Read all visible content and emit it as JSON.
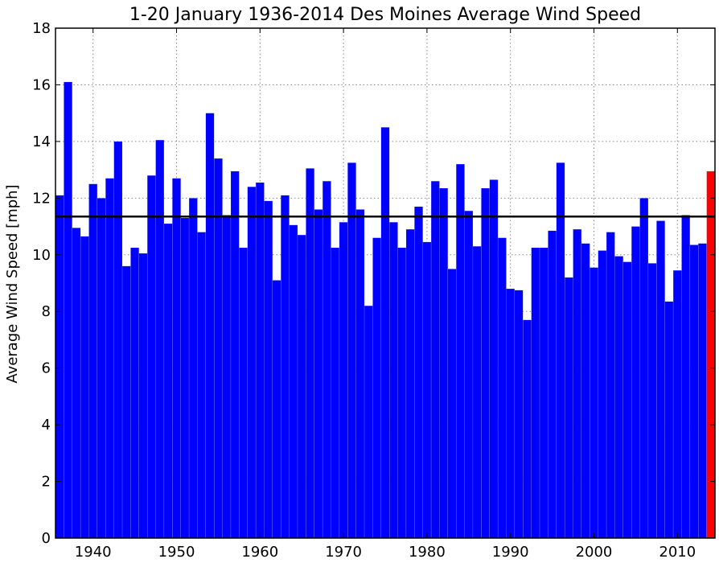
{
  "chart_data": {
    "type": "bar",
    "title": "1-20 January 1936-2014 Des Moines Average Wind Speed",
    "xlabel": "",
    "ylabel": "Average Wind Speed [mph]",
    "ylim": [
      0,
      18
    ],
    "xlim": [
      1935.5,
      2014.5
    ],
    "yticks": [
      0,
      2,
      4,
      6,
      8,
      10,
      12,
      14,
      16,
      18
    ],
    "xticks": [
      1940,
      1950,
      1960,
      1970,
      1980,
      1990,
      2000,
      2010
    ],
    "grid": true,
    "x": [
      1936,
      1937,
      1938,
      1939,
      1940,
      1941,
      1942,
      1943,
      1944,
      1945,
      1946,
      1947,
      1948,
      1949,
      1950,
      1951,
      1952,
      1953,
      1954,
      1955,
      1956,
      1957,
      1958,
      1959,
      1960,
      1961,
      1962,
      1963,
      1964,
      1965,
      1966,
      1967,
      1968,
      1969,
      1970,
      1971,
      1972,
      1973,
      1974,
      1975,
      1976,
      1977,
      1978,
      1979,
      1980,
      1981,
      1982,
      1983,
      1984,
      1985,
      1986,
      1987,
      1988,
      1989,
      1990,
      1991,
      1992,
      1993,
      1994,
      1995,
      1996,
      1997,
      1998,
      1999,
      2000,
      2001,
      2002,
      2003,
      2004,
      2005,
      2006,
      2007,
      2008,
      2009,
      2010,
      2011,
      2012,
      2013,
      2014
    ],
    "values": [
      12.1,
      16.1,
      10.95,
      10.65,
      12.5,
      12.0,
      12.7,
      14.0,
      9.6,
      10.25,
      10.05,
      12.8,
      14.05,
      11.1,
      12.7,
      11.3,
      12.0,
      10.8,
      15.0,
      13.4,
      11.4,
      12.95,
      10.25,
      12.4,
      12.55,
      11.9,
      9.1,
      12.1,
      11.05,
      10.7,
      13.05,
      11.6,
      12.6,
      10.25,
      11.15,
      13.25,
      11.6,
      8.2,
      10.6,
      14.5,
      11.15,
      10.25,
      10.9,
      11.7,
      10.45,
      12.6,
      12.35,
      9.5,
      13.2,
      11.55,
      10.3,
      12.35,
      12.65,
      10.6,
      8.8,
      8.75,
      7.7,
      10.25,
      10.25,
      10.85,
      13.25,
      9.2,
      10.9,
      10.4,
      9.55,
      10.15,
      10.8,
      9.95,
      9.75,
      11.0,
      12.0,
      9.7,
      11.2,
      8.35,
      9.45,
      11.4,
      10.35,
      10.4,
      12.95
    ],
    "highlight_year": 2014,
    "average": 11.35,
    "colors": {
      "bar": "#0000ff",
      "highlight": "#ff0000",
      "average_line": "#000000",
      "grid": "#888888"
    }
  }
}
